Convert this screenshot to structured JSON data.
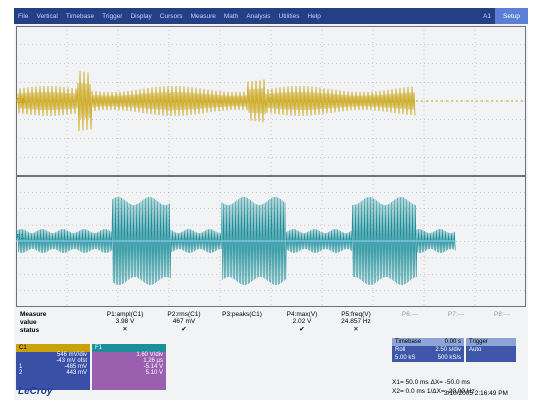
{
  "menu": {
    "items": [
      "File",
      "Vertical",
      "Timebase",
      "Trigger",
      "Display",
      "Cursors",
      "Measure",
      "Math",
      "Analysis",
      "Utilities",
      "Help"
    ],
    "status": "A1",
    "setup": "Setup"
  },
  "colors": {
    "ch1": "#c9a20b",
    "ch2": "#1c8f9a",
    "menu_bg": "#243f86",
    "grid": "#9aa0a6"
  },
  "measure": {
    "labels": [
      "Measure",
      "value",
      "status"
    ],
    "params": [
      {
        "name": "P1:ampl(C1)",
        "value": "3.98 V",
        "status": "✕"
      },
      {
        "name": "P2:rms(C1)",
        "value": "467 mV",
        "status": "✔"
      },
      {
        "name": "P3:peaks(C1)",
        "value": "",
        "status": ""
      },
      {
        "name": "P4:max(V)",
        "value": "2.02 V",
        "status": "✔"
      },
      {
        "name": "P5:freq(V)",
        "value": "24.857 Hz",
        "status": "✕"
      },
      {
        "name": "P6:---",
        "value": "",
        "status": ""
      },
      {
        "name": "P7:---",
        "value": "",
        "status": ""
      },
      {
        "name": "P8:---",
        "value": "",
        "status": ""
      }
    ]
  },
  "channels": {
    "c1": {
      "title": "C1",
      "rows": [
        [
          "",
          "546 mV/div"
        ],
        [
          "",
          "-43 mV ofst"
        ],
        [
          "1",
          "-485 mV"
        ],
        [
          "2",
          "443 mV"
        ]
      ]
    },
    "c2": {
      "title": "F1",
      "rows": [
        [
          "",
          "1.60 V/div"
        ],
        [
          "",
          "1.26 µs"
        ],
        [
          "",
          "-5.14 V"
        ],
        [
          "",
          "5.10 V"
        ]
      ]
    }
  },
  "timebase": {
    "label": "Timebase",
    "value": "0.00 s",
    "rows": [
      [
        "Roll",
        "2.50 s/div"
      ],
      [
        "5.00 kS",
        "500 kS/s"
      ]
    ]
  },
  "trigger": {
    "label": "Trigger",
    "value": "Auto"
  },
  "cursors": {
    "line1": "X1= 50.0 ms    ΔX= -50.0 ms",
    "line2": "X2= 0.0 ms  1/ΔX= -20.00 Hz"
  },
  "brand": "LeCroy",
  "datetime": "3/10/2005 2:16:49 PM"
}
